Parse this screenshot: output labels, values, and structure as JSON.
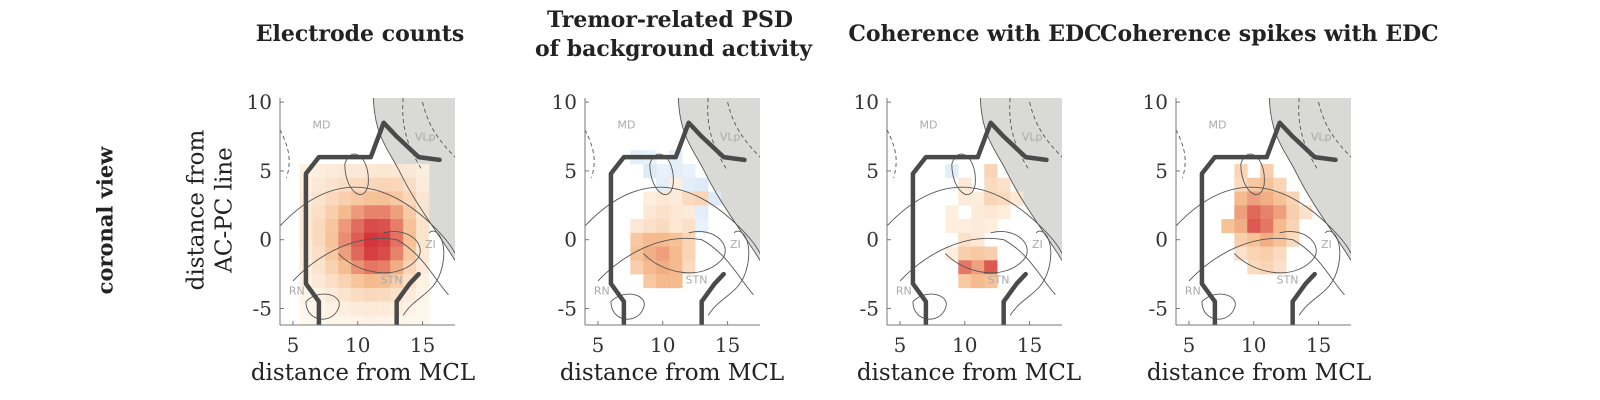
{
  "row_label": "coronal view",
  "chart_data": [
    {
      "type": "heatmap",
      "title": "Electrode counts",
      "xlabel": "distance from MCL",
      "ylabel": [
        "distance from",
        "AC-PC line"
      ],
      "xlim": [
        4,
        17.5
      ],
      "ylim": [
        -6.2,
        10.3
      ],
      "xticks": [
        5,
        10,
        15
      ],
      "yticks": [
        -5,
        0,
        5,
        10
      ],
      "grid": false,
      "atlas_labels": [
        "MD",
        "VLp",
        "ZI",
        "STN",
        "RN"
      ],
      "cell_size": 1,
      "colormap": "reds",
      "cells": [
        [
          6,
          5,
          0.08
        ],
        [
          7,
          5,
          0.1
        ],
        [
          8,
          5,
          0.12
        ],
        [
          9,
          5,
          0.14
        ],
        [
          10,
          5,
          0.14
        ],
        [
          11,
          5,
          0.15
        ],
        [
          12,
          5,
          0.16
        ],
        [
          13,
          5,
          0.15
        ],
        [
          14,
          5,
          0.12
        ],
        [
          15,
          5,
          0.08
        ],
        [
          6,
          4,
          0.1
        ],
        [
          7,
          4,
          0.14
        ],
        [
          8,
          4,
          0.18
        ],
        [
          9,
          4,
          0.22
        ],
        [
          10,
          4,
          0.25
        ],
        [
          11,
          4,
          0.28
        ],
        [
          12,
          4,
          0.3
        ],
        [
          13,
          4,
          0.28
        ],
        [
          14,
          4,
          0.2
        ],
        [
          15,
          4,
          0.1
        ],
        [
          6,
          3,
          0.12
        ],
        [
          7,
          3,
          0.18
        ],
        [
          8,
          3,
          0.26
        ],
        [
          9,
          3,
          0.34
        ],
        [
          10,
          3,
          0.4
        ],
        [
          11,
          3,
          0.45
        ],
        [
          12,
          3,
          0.46
        ],
        [
          13,
          3,
          0.4
        ],
        [
          14,
          3,
          0.28
        ],
        [
          15,
          3,
          0.14
        ],
        [
          6,
          2,
          0.14
        ],
        [
          7,
          2,
          0.22
        ],
        [
          8,
          2,
          0.35
        ],
        [
          9,
          2,
          0.5
        ],
        [
          10,
          2,
          0.62
        ],
        [
          11,
          2,
          0.7
        ],
        [
          12,
          2,
          0.7
        ],
        [
          13,
          2,
          0.6
        ],
        [
          14,
          2,
          0.38
        ],
        [
          15,
          2,
          0.16
        ],
        [
          6,
          1,
          0.15
        ],
        [
          7,
          1,
          0.26
        ],
        [
          8,
          1,
          0.42
        ],
        [
          9,
          1,
          0.62
        ],
        [
          10,
          1,
          0.78
        ],
        [
          11,
          1,
          0.9
        ],
        [
          12,
          1,
          0.88
        ],
        [
          13,
          1,
          0.72
        ],
        [
          14,
          1,
          0.45
        ],
        [
          15,
          1,
          0.18
        ],
        [
          6,
          0,
          0.14
        ],
        [
          7,
          0,
          0.26
        ],
        [
          8,
          0,
          0.44
        ],
        [
          9,
          0,
          0.66
        ],
        [
          10,
          0,
          0.84
        ],
        [
          11,
          0,
          0.98
        ],
        [
          12,
          0,
          0.95
        ],
        [
          13,
          0,
          0.76
        ],
        [
          14,
          0,
          0.46
        ],
        [
          15,
          0,
          0.18
        ],
        [
          6,
          -1,
          0.12
        ],
        [
          7,
          -1,
          0.22
        ],
        [
          8,
          -1,
          0.4
        ],
        [
          9,
          -1,
          0.6
        ],
        [
          10,
          -1,
          0.8
        ],
        [
          11,
          -1,
          0.95
        ],
        [
          12,
          -1,
          0.9
        ],
        [
          13,
          -1,
          0.7
        ],
        [
          14,
          -1,
          0.4
        ],
        [
          15,
          -1,
          0.15
        ],
        [
          6,
          -2,
          0.1
        ],
        [
          7,
          -2,
          0.18
        ],
        [
          8,
          -2,
          0.32
        ],
        [
          9,
          -2,
          0.48
        ],
        [
          10,
          -2,
          0.65
        ],
        [
          11,
          -2,
          0.75
        ],
        [
          12,
          -2,
          0.72
        ],
        [
          13,
          -2,
          0.55
        ],
        [
          14,
          -2,
          0.3
        ],
        [
          15,
          -2,
          0.12
        ],
        [
          6,
          -3,
          0.08
        ],
        [
          7,
          -3,
          0.14
        ],
        [
          8,
          -3,
          0.22
        ],
        [
          9,
          -3,
          0.32
        ],
        [
          10,
          -3,
          0.42
        ],
        [
          11,
          -3,
          0.5
        ],
        [
          12,
          -3,
          0.48
        ],
        [
          13,
          -3,
          0.36
        ],
        [
          14,
          -3,
          0.2
        ],
        [
          15,
          -3,
          0.08
        ],
        [
          6,
          -4,
          0.05
        ],
        [
          7,
          -4,
          0.08
        ],
        [
          8,
          -4,
          0.12
        ],
        [
          9,
          -4,
          0.18
        ],
        [
          10,
          -4,
          0.24
        ],
        [
          11,
          -4,
          0.28
        ],
        [
          12,
          -4,
          0.26
        ],
        [
          13,
          -4,
          0.2
        ],
        [
          14,
          -4,
          0.12
        ],
        [
          15,
          -4,
          0.05
        ],
        [
          6,
          -5,
          0.03
        ],
        [
          7,
          -5,
          0.05
        ],
        [
          8,
          -5,
          0.07
        ],
        [
          9,
          -5,
          0.1
        ],
        [
          10,
          -5,
          0.12
        ],
        [
          11,
          -5,
          0.13
        ],
        [
          12,
          -5,
          0.12
        ],
        [
          13,
          -5,
          0.1
        ],
        [
          14,
          -5,
          0.06
        ],
        [
          15,
          -5,
          0.03
        ],
        [
          6,
          -6,
          0.02
        ],
        [
          7,
          -6,
          0.03
        ],
        [
          8,
          -6,
          0.04
        ],
        [
          9,
          -6,
          0.05
        ],
        [
          10,
          -6,
          0.06
        ],
        [
          11,
          -6,
          0.07
        ],
        [
          12,
          -6,
          0.06
        ],
        [
          13,
          -6,
          0.05
        ],
        [
          14,
          -6,
          0.03
        ],
        [
          15,
          -6,
          0.02
        ]
      ]
    },
    {
      "type": "heatmap",
      "title": [
        "Tremor-related PSD",
        "of background activity"
      ],
      "xlabel": "distance from MCL",
      "xlim": [
        4,
        17.5
      ],
      "ylim": [
        -6.2,
        10.3
      ],
      "xticks": [
        5,
        10,
        15
      ],
      "yticks": [
        -5,
        0,
        5,
        10
      ],
      "grid": false,
      "atlas_labels": [
        "MD",
        "VLp",
        "ZI",
        "STN",
        "RN"
      ],
      "cell_size": 1,
      "colormap": "diverging blue-white-red",
      "cells": [
        [
          8,
          6,
          -0.2
        ],
        [
          9,
          6,
          -0.15
        ],
        [
          11,
          6,
          -0.2
        ],
        [
          9,
          5,
          -0.25
        ],
        [
          10,
          5,
          -0.15
        ],
        [
          11,
          5,
          -0.2
        ],
        [
          12,
          5,
          -0.15
        ],
        [
          10,
          4,
          -0.2
        ],
        [
          11,
          4,
          0.1
        ],
        [
          12,
          4,
          -0.2
        ],
        [
          13,
          4,
          -0.25
        ],
        [
          9,
          3,
          0.1
        ],
        [
          10,
          3,
          0.15
        ],
        [
          11,
          3,
          0.12
        ],
        [
          12,
          3,
          0.25
        ],
        [
          13,
          3,
          0.3
        ],
        [
          14,
          3,
          -0.25
        ],
        [
          9,
          2,
          0.15
        ],
        [
          10,
          2,
          0.2
        ],
        [
          11,
          2,
          0.15
        ],
        [
          12,
          2,
          0.12
        ],
        [
          13,
          2,
          -0.2
        ],
        [
          8,
          1,
          0.15
        ],
        [
          9,
          1,
          0.2
        ],
        [
          10,
          1,
          0.25
        ],
        [
          11,
          1,
          0.15
        ],
        [
          12,
          1,
          0.2
        ],
        [
          13,
          1,
          -0.15
        ],
        [
          8,
          0,
          0.4
        ],
        [
          9,
          0,
          0.5
        ],
        [
          10,
          0,
          0.5
        ],
        [
          11,
          0,
          0.45
        ],
        [
          12,
          0,
          0.3
        ],
        [
          8,
          -1,
          0.45
        ],
        [
          9,
          -1,
          0.55
        ],
        [
          10,
          -1,
          0.6
        ],
        [
          11,
          -1,
          0.5
        ],
        [
          12,
          -1,
          0.3
        ],
        [
          8,
          -2,
          0.35
        ],
        [
          9,
          -2,
          0.5
        ],
        [
          10,
          -2,
          0.55
        ],
        [
          11,
          -2,
          0.5
        ],
        [
          12,
          -2,
          0.25
        ],
        [
          9,
          -3,
          0.4
        ],
        [
          10,
          -3,
          0.5
        ],
        [
          11,
          -3,
          0.5
        ]
      ]
    },
    {
      "type": "heatmap",
      "title": "Coherence with EDC",
      "xlabel": "distance from MCL",
      "xlim": [
        4,
        17.5
      ],
      "ylim": [
        -6.2,
        10.3
      ],
      "xticks": [
        5,
        10,
        15
      ],
      "yticks": [
        -5,
        0,
        5,
        10
      ],
      "grid": false,
      "atlas_labels": [
        "MD",
        "VLp",
        "ZI",
        "STN",
        "RN"
      ],
      "cell_size": 1,
      "colormap": "diverging blue-white-red",
      "cells": [
        [
          9,
          5,
          -0.2
        ],
        [
          12,
          5,
          0.3
        ],
        [
          10,
          4,
          0.15
        ],
        [
          12,
          4,
          0.25
        ],
        [
          13,
          4,
          0.2
        ],
        [
          10,
          3,
          0.12
        ],
        [
          11,
          3,
          0.1
        ],
        [
          12,
          3,
          0.3
        ],
        [
          13,
          3,
          0.25
        ],
        [
          14,
          3,
          0.15
        ],
        [
          9,
          2,
          0.1
        ],
        [
          11,
          2,
          0.12
        ],
        [
          12,
          2,
          0.15
        ],
        [
          13,
          2,
          0.1
        ],
        [
          9,
          1,
          0.1
        ],
        [
          10,
          1,
          0.1
        ],
        [
          11,
          1,
          0.12
        ],
        [
          12,
          1,
          0.1
        ],
        [
          10,
          0,
          0.2
        ],
        [
          11,
          0,
          0.15
        ],
        [
          9,
          -1,
          0.1
        ],
        [
          10,
          -1,
          0.35
        ],
        [
          11,
          -1,
          0.4
        ],
        [
          12,
          -1,
          0.35
        ],
        [
          10,
          -2,
          0.75
        ],
        [
          11,
          -2,
          0.6
        ],
        [
          12,
          -2,
          0.85
        ],
        [
          10,
          -3,
          0.4
        ],
        [
          11,
          -3,
          0.5
        ],
        [
          12,
          -3,
          0.45
        ]
      ]
    },
    {
      "type": "heatmap",
      "title": "Coherence spikes with EDC",
      "xlabel": "distance from MCL",
      "xlim": [
        4,
        17.5
      ],
      "ylim": [
        -6.2,
        10.3
      ],
      "xticks": [
        5,
        10,
        15
      ],
      "yticks": [
        -5,
        0,
        5,
        10
      ],
      "grid": false,
      "atlas_labels": [
        "MD",
        "VLp",
        "ZI",
        "STN",
        "RN"
      ],
      "cell_size": 1,
      "colormap": "diverging blue-white-red",
      "cells": [
        [
          9,
          5,
          0.3
        ],
        [
          11,
          5,
          0.35
        ],
        [
          9,
          4,
          0.25
        ],
        [
          10,
          4,
          0.4
        ],
        [
          11,
          4,
          0.45
        ],
        [
          12,
          4,
          0.3
        ],
        [
          9,
          3,
          0.5
        ],
        [
          10,
          3,
          0.6
        ],
        [
          11,
          3,
          0.55
        ],
        [
          12,
          3,
          0.45
        ],
        [
          13,
          3,
          0.3
        ],
        [
          9,
          2,
          0.6
        ],
        [
          10,
          2,
          0.8
        ],
        [
          11,
          2,
          0.7
        ],
        [
          12,
          2,
          0.6
        ],
        [
          13,
          2,
          0.35
        ],
        [
          14,
          2,
          0.2
        ],
        [
          8,
          1,
          0.45
        ],
        [
          9,
          1,
          0.55
        ],
        [
          10,
          1,
          0.85
        ],
        [
          11,
          1,
          0.75
        ],
        [
          12,
          1,
          0.5
        ],
        [
          13,
          1,
          0.3
        ],
        [
          9,
          0,
          0.35
        ],
        [
          10,
          0,
          0.45
        ],
        [
          11,
          0,
          0.55
        ],
        [
          12,
          0,
          0.45
        ],
        [
          13,
          0,
          0.25
        ],
        [
          9,
          -1,
          0.2
        ],
        [
          10,
          -1,
          0.3
        ],
        [
          11,
          -1,
          0.35
        ],
        [
          12,
          -1,
          0.25
        ],
        [
          10,
          -2,
          0.25
        ],
        [
          11,
          -2,
          0.3
        ],
        [
          12,
          -2,
          0.2
        ]
      ]
    }
  ]
}
